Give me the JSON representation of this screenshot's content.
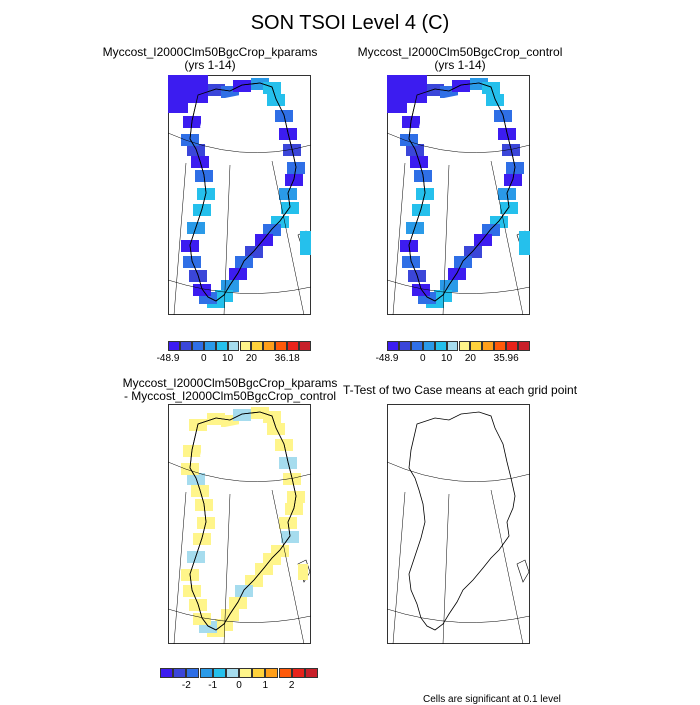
{
  "title": "SON TSOI Level 4 (C)",
  "panels": [
    {
      "id": "kparams",
      "title_line1": "Myccost_I2000Clm50BgcCrop_kparams",
      "title_line2": "(yrs 1-14)"
    },
    {
      "id": "control",
      "title_line1": "Myccost_I2000Clm50BgcCrop_control",
      "title_line2": "(yrs 1-14)"
    },
    {
      "id": "diff",
      "title_line1": "Myccost_I2000Clm50BgcCrop_kparams",
      "title_line2": "- Myccost_I2000Clm50BgcCrop_control"
    },
    {
      "id": "ttest",
      "title_line1": "T-Test of two Case means at each grid point",
      "title_line2": ""
    }
  ],
  "colorbars": [
    {
      "id": "cb-kparams",
      "colors": [
        "#3c1cf0",
        "#3b46d9",
        "#2f6fe6",
        "#2a9ae8",
        "#25c0ec",
        "#a6dcee",
        "#fff58a",
        "#ffd23c",
        "#ff9f1a",
        "#ff5a0a",
        "#e8231b",
        "#c8202a"
      ],
      "labels": [
        "-48.9",
        "0",
        "10",
        "20",
        "36.18"
      ],
      "label_positions": [
        0,
        3,
        5,
        7,
        10
      ]
    },
    {
      "id": "cb-control",
      "colors": [
        "#3c1cf0",
        "#3b46d9",
        "#2f6fe6",
        "#2a9ae8",
        "#25c0ec",
        "#a6dcee",
        "#fff58a",
        "#ffd23c",
        "#ff9f1a",
        "#ff5a0a",
        "#e8231b",
        "#c8202a"
      ],
      "labels": [
        "-48.9",
        "0",
        "10",
        "20",
        "35.96"
      ],
      "label_positions": [
        0,
        3,
        5,
        7,
        10
      ]
    },
    {
      "id": "cb-diff",
      "colors": [
        "#3c1cf0",
        "#3b46d9",
        "#2f6fe6",
        "#2a9ae8",
        "#25c0ec",
        "#a6dcee",
        "#fff58a",
        "#ffd23c",
        "#ff9f1a",
        "#ff5a0a",
        "#e8231b",
        "#c8202a"
      ],
      "labels": [
        "-2",
        "-1",
        "0",
        "1",
        "2"
      ],
      "label_positions": [
        2,
        4,
        6,
        8,
        10
      ]
    }
  ],
  "footnote": "Cells are significant at 0.1 level"
}
